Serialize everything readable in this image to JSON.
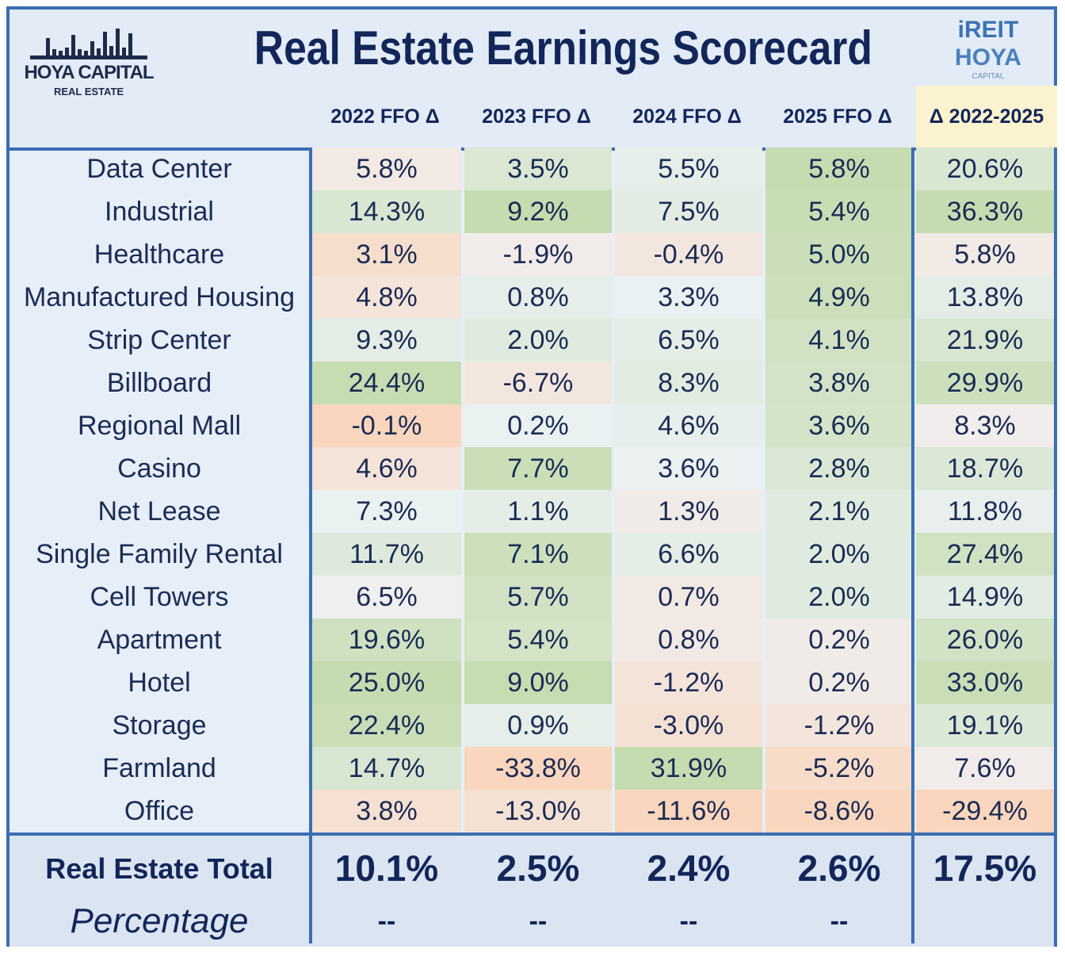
{
  "header": {
    "title": "Real Estate Earnings Scorecard",
    "logo_left": "HOYA CAPITAL",
    "logo_left_sub": "REAL ESTATE",
    "logo_right_line1": "iREIT",
    "logo_right_line2": "HOYA",
    "logo_right_line3": "CAPITAL"
  },
  "colors": {
    "border": "#3b6eb3",
    "text": "#13265a",
    "positive": "#c5dcb0",
    "negative": "#f9d6bd",
    "neutral": "#eef3f8",
    "highlight_header": "#fbf2cf"
  },
  "chart_data": {
    "type": "table",
    "title": "Real Estate Earnings Scorecard",
    "columns": [
      "2022 FFO Δ",
      "2023 FFO Δ",
      "2024 FFO Δ",
      "2025 FFO Δ",
      "Δ 2022-2025"
    ],
    "rows": [
      {
        "label": "Data Center",
        "values": [
          "5.8%",
          "3.5%",
          "5.5%",
          "5.8%",
          "20.6%"
        ]
      },
      {
        "label": "Industrial",
        "values": [
          "14.3%",
          "9.2%",
          "7.5%",
          "5.4%",
          "36.3%"
        ]
      },
      {
        "label": "Healthcare",
        "values": [
          "3.1%",
          "-1.9%",
          "-0.4%",
          "5.0%",
          "5.8%"
        ]
      },
      {
        "label": "Manufactured Housing",
        "values": [
          "4.8%",
          "0.8%",
          "3.3%",
          "4.9%",
          "13.8%"
        ]
      },
      {
        "label": "Strip Center",
        "values": [
          "9.3%",
          "2.0%",
          "6.5%",
          "4.1%",
          "21.9%"
        ]
      },
      {
        "label": "Billboard",
        "values": [
          "24.4%",
          "-6.7%",
          "8.3%",
          "3.8%",
          "29.9%"
        ]
      },
      {
        "label": "Regional Mall",
        "values": [
          "-0.1%",
          "0.2%",
          "4.6%",
          "3.6%",
          "8.3%"
        ]
      },
      {
        "label": "Casino",
        "values": [
          "4.6%",
          "7.7%",
          "3.6%",
          "2.8%",
          "18.7%"
        ]
      },
      {
        "label": "Net Lease",
        "values": [
          "7.3%",
          "1.1%",
          "1.3%",
          "2.1%",
          "11.8%"
        ]
      },
      {
        "label": "Single Family Rental",
        "values": [
          "11.7%",
          "7.1%",
          "6.6%",
          "2.0%",
          "27.4%"
        ]
      },
      {
        "label": "Cell Towers",
        "values": [
          "6.5%",
          "5.7%",
          "0.7%",
          "2.0%",
          "14.9%"
        ]
      },
      {
        "label": "Apartment",
        "values": [
          "19.6%",
          "5.4%",
          "0.8%",
          "0.2%",
          "26.0%"
        ]
      },
      {
        "label": "Hotel",
        "values": [
          "25.0%",
          "9.0%",
          "-1.2%",
          "0.2%",
          "33.0%"
        ]
      },
      {
        "label": "Storage",
        "values": [
          "22.4%",
          "0.9%",
          "-3.0%",
          "-1.2%",
          "19.1%"
        ]
      },
      {
        "label": "Farmland",
        "values": [
          "14.7%",
          "-33.8%",
          "31.9%",
          "-5.2%",
          "7.6%"
        ]
      },
      {
        "label": "Office",
        "values": [
          "3.8%",
          "-13.0%",
          "-11.6%",
          "-8.6%",
          "-29.4%"
        ]
      }
    ],
    "totals": {
      "label": "Real Estate Total",
      "values": [
        "10.1%",
        "2.5%",
        "2.4%",
        "2.6%",
        "17.5%"
      ]
    },
    "percentage": {
      "label": "Percentage",
      "values": [
        "--",
        "--",
        "--",
        "--",
        ""
      ]
    }
  }
}
